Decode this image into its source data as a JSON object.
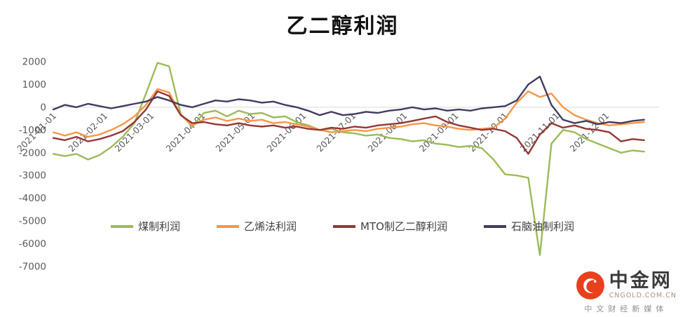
{
  "chart_data": {
    "type": "line",
    "title": "乙二醇利润",
    "ylim": [
      -7000,
      2000
    ],
    "y_ticks": [
      2000,
      1000,
      0,
      -1000,
      -2000,
      -3000,
      -4000,
      -5000,
      -6000,
      -7000
    ],
    "x_tick_labels": [
      "2021-01-01",
      "2021-02-01",
      "2021-03-01",
      "2021-04-01",
      "2021-05-01",
      "2021-06-01",
      "2021-07-01",
      "2021-08-01",
      "2021-09-01",
      "2021-10-01",
      "2021-11-01",
      "2021-12-01"
    ],
    "start_date": "2021-01-01",
    "interval_days": 7,
    "grid": "zero-line-only",
    "legend_position": "bottom-center",
    "series": [
      {
        "name": "煤制利润",
        "color": "#9BBB59",
        "values": [
          -2050,
          -2150,
          -2050,
          -2300,
          -2100,
          -1750,
          -1300,
          -700,
          600,
          1950,
          1800,
          -300,
          -850,
          -250,
          -150,
          -400,
          -150,
          -300,
          -250,
          -450,
          -400,
          -650,
          -800,
          -1000,
          -950,
          -1100,
          -1150,
          -1250,
          -1200,
          -1350,
          -1400,
          -1500,
          -1450,
          -1600,
          -1650,
          -1750,
          -1700,
          -1800,
          -2300,
          -2950,
          -3000,
          -3100,
          -6500,
          -1600,
          -1000,
          -1100,
          -1400,
          -1600,
          -1800,
          -2000,
          -1900,
          -1950
        ]
      },
      {
        "name": "乙烯法利润",
        "color": "#F79646",
        "values": [
          -1100,
          -1250,
          -1100,
          -1300,
          -1200,
          -1000,
          -750,
          -400,
          100,
          800,
          650,
          -350,
          -800,
          -550,
          -450,
          -600,
          -500,
          -600,
          -550,
          -700,
          -650,
          -750,
          -850,
          -1000,
          -1100,
          -1050,
          -1000,
          -1050,
          -950,
          -900,
          -850,
          -750,
          -700,
          -800,
          -850,
          -950,
          -1000,
          -950,
          -900,
          -500,
          200,
          700,
          450,
          600,
          0,
          -350,
          -550,
          -700,
          -800,
          -750,
          -700,
          -650
        ]
      },
      {
        "name": "MTO制乙二醇利润",
        "color": "#943735",
        "values": [
          -1350,
          -1450,
          -1300,
          -1500,
          -1400,
          -1250,
          -1050,
          -650,
          -100,
          700,
          500,
          -350,
          -700,
          -650,
          -750,
          -800,
          -700,
          -800,
          -850,
          -800,
          -900,
          -850,
          -950,
          -1000,
          -900,
          -950,
          -850,
          -900,
          -800,
          -750,
          -700,
          -600,
          -500,
          -400,
          -650,
          -800,
          -900,
          -1000,
          -950,
          -1050,
          -1350,
          -2050,
          -1200,
          -700,
          -900,
          -800,
          -950,
          -1000,
          -1100,
          -1500,
          -1400,
          -1450
        ]
      },
      {
        "name": "石脑油制利润",
        "color": "#413C60",
        "values": [
          -100,
          100,
          0,
          150,
          50,
          -50,
          50,
          150,
          250,
          450,
          300,
          100,
          0,
          150,
          300,
          250,
          350,
          300,
          200,
          250,
          100,
          0,
          -150,
          -350,
          -200,
          -350,
          -300,
          -200,
          -250,
          -150,
          -100,
          0,
          -100,
          -50,
          -150,
          -100,
          -150,
          -50,
          0,
          50,
          300,
          1000,
          1350,
          100,
          -550,
          -700,
          -600,
          -750,
          -650,
          -700,
          -600,
          -550
        ]
      }
    ]
  },
  "watermark": {
    "brand": "中金网",
    "domain": "CNGOLD.COM.CN",
    "tagline": "中文财经新媒体"
  }
}
